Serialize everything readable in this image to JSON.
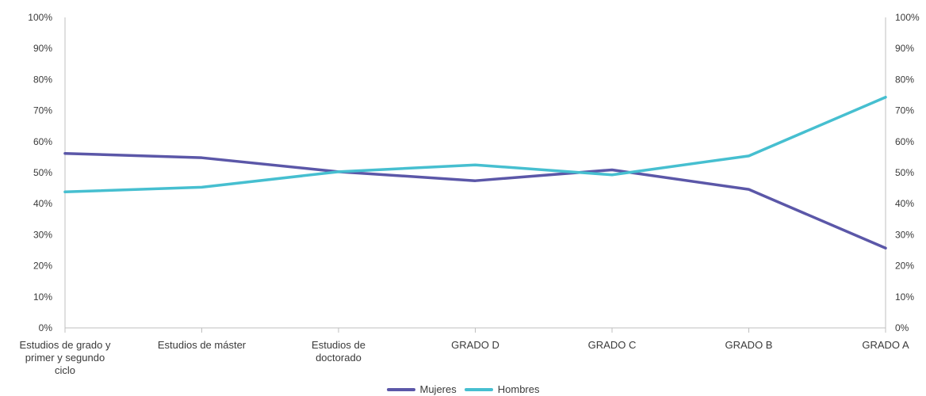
{
  "chart_data": {
    "type": "line",
    "categories": [
      [
        "Estudios de grado y",
        "primer y segundo",
        "ciclo"
      ],
      [
        "Estudios de máster"
      ],
      [
        "Estudios de",
        "doctorado"
      ],
      [
        "GRADO D"
      ],
      [
        "GRADO C"
      ],
      [
        "GRADO B"
      ],
      [
        "GRADO A"
      ]
    ],
    "series": [
      {
        "name": "Mujeres",
        "color": "#5b57a8",
        "values": [
          56.2,
          54.8,
          50.3,
          47.4,
          50.9,
          44.6,
          25.7
        ]
      },
      {
        "name": "Hombres",
        "color": "#46bfd0",
        "values": [
          43.8,
          45.3,
          50.3,
          52.5,
          49.3,
          55.4,
          74.3
        ]
      }
    ],
    "ylim": [
      0,
      100
    ],
    "yticks": [
      "0%",
      "10%",
      "20%",
      "30%",
      "40%",
      "50%",
      "60%",
      "70%",
      "80%",
      "90%",
      "100%"
    ],
    "yticks_right": [
      "0%",
      "10%",
      "20%",
      "30%",
      "40%",
      "50%",
      "60%",
      "70%",
      "80%",
      "90%",
      "100%"
    ],
    "grid": false,
    "legend_position": "bottom-center"
  },
  "legend": [
    {
      "label": "Mujeres",
      "color": "#5b57a8"
    },
    {
      "label": "Hombres",
      "color": "#46bfd0"
    }
  ]
}
